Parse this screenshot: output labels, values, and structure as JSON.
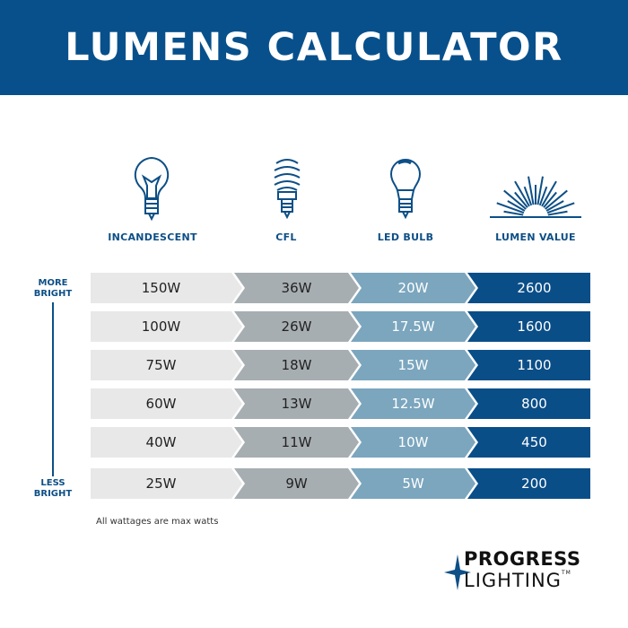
{
  "title": "LUMENS CALCULATOR",
  "columns": [
    "INCANDESCENT",
    "CFL",
    "LED BULB",
    "LUMEN VALUE"
  ],
  "icons": [
    "incandescent-bulb-icon",
    "cfl-bulb-icon",
    "led-bulb-icon",
    "lumen-rays-icon"
  ],
  "rows": [
    [
      "150W",
      "36W",
      "20W",
      "2600"
    ],
    [
      "100W",
      "26W",
      "17.5W",
      "1600"
    ],
    [
      "75W",
      "18W",
      "15W",
      "1100"
    ],
    [
      "60W",
      "13W",
      "12.5W",
      "800"
    ],
    [
      "40W",
      "11W",
      "10W",
      "450"
    ],
    [
      "25W",
      "9W",
      "5W",
      "200"
    ]
  ],
  "scale": {
    "top": "MORE BRIGHT",
    "bottom": "LESS BRIGHT"
  },
  "note": "All wattages are max watts",
  "logo": {
    "line1": "PROGRESS",
    "line2": "LIGHTING",
    "tm": "TM"
  },
  "colors": {
    "header": "#07508b",
    "incandescent": "#e8e8e8",
    "cfl": "#a7aeb2",
    "led": "#7ba6be",
    "lumen": "#0a4e88"
  }
}
